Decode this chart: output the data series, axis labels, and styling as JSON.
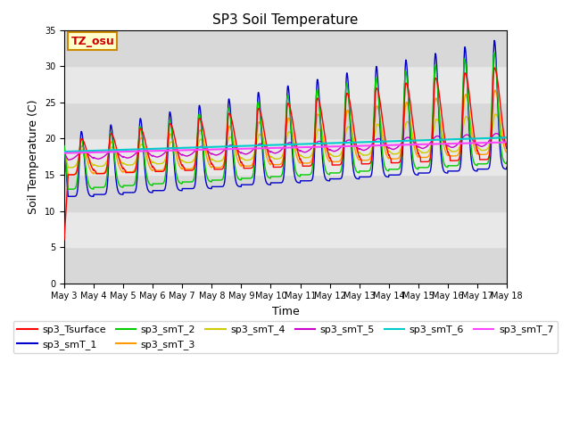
{
  "title": "SP3 Soil Temperature",
  "xlabel": "Time",
  "ylabel": "Soil Temperature (C)",
  "ylim": [
    0,
    35
  ],
  "annotation": "TZ_osu",
  "series_colors": {
    "sp3_Tsurface": "#ff0000",
    "sp3_smT_1": "#0000cc",
    "sp3_smT_2": "#00cc00",
    "sp3_smT_3": "#ff9900",
    "sp3_smT_4": "#cccc00",
    "sp3_smT_5": "#cc00cc",
    "sp3_smT_6": "#00cccc",
    "sp3_smT_7": "#ff44ff"
  },
  "x_tick_labels": [
    "May 3",
    "May 4",
    "May 5",
    "May 6",
    "May 7",
    "May 8",
    "May 9",
    "May 10",
    "May 11",
    "May 12",
    "May 13",
    "May 14",
    "May 15",
    "May 16",
    "May 17",
    "May 18"
  ],
  "x_tick_positions": [
    0,
    1,
    2,
    3,
    4,
    5,
    6,
    7,
    8,
    9,
    10,
    11,
    12,
    13,
    14,
    15
  ],
  "band_colors": [
    "#d8d8d8",
    "#e8e8e8"
  ],
  "band_edges": [
    0,
    5,
    10,
    15,
    20,
    25,
    30,
    35
  ]
}
